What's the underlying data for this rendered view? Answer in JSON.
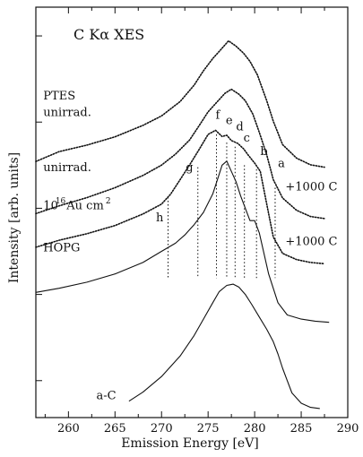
{
  "chart_data": {
    "type": "line",
    "title": "C Kα XES",
    "xlabel": "Emission Energy [eV]",
    "ylabel": "Intensity [arb. units]",
    "xlim": [
      256.5,
      290
    ],
    "ylim": [
      0,
      1
    ],
    "x_ticks": [
      260,
      265,
      270,
      275,
      280,
      285,
      290
    ],
    "grid": false,
    "legend": "none",
    "series": [
      {
        "name": "PTES unirrad.",
        "style": "dots",
        "x": [
          256.5,
          259,
          262,
          265,
          268,
          270,
          272,
          273.5,
          274.5,
          275.5,
          276.3,
          277.2,
          278,
          278.8,
          279.5,
          280.3,
          281.3,
          282,
          283,
          284.5,
          286,
          287.5
        ],
        "y": [
          0.624,
          0.648,
          0.664,
          0.684,
          0.712,
          0.735,
          0.77,
          0.81,
          0.845,
          0.875,
          0.895,
          0.918,
          0.905,
          0.888,
          0.868,
          0.835,
          0.772,
          0.722,
          0.665,
          0.632,
          0.616,
          0.61
        ]
      },
      {
        "name": "unirrad.",
        "style": "dots",
        "x": [
          256.5,
          259,
          262,
          265,
          268,
          270,
          271.5,
          273,
          274,
          275,
          276,
          276.8,
          277.5,
          278.3,
          279,
          279.8,
          280.5,
          281.3,
          282,
          283,
          284.5,
          286,
          287.5
        ],
        "y": [
          0.497,
          0.516,
          0.536,
          0.56,
          0.59,
          0.615,
          0.642,
          0.676,
          0.71,
          0.745,
          0.77,
          0.79,
          0.8,
          0.788,
          0.772,
          0.74,
          0.695,
          0.64,
          0.58,
          0.535,
          0.505,
          0.49,
          0.485
        ]
      },
      {
        "name": "10^16 Au cm^2 +1000 C",
        "style": "dots",
        "x": [
          256.5,
          259,
          262,
          265,
          268,
          270,
          271,
          272,
          273,
          274,
          275,
          275.8,
          276.5,
          277,
          277.5,
          278.2,
          278.8,
          279.3,
          280,
          280.6,
          281.3,
          282,
          283,
          284.5,
          286,
          287.5
        ],
        "y": [
          0.415,
          0.432,
          0.448,
          0.468,
          0.496,
          0.52,
          0.545,
          0.58,
          0.615,
          0.652,
          0.69,
          0.7,
          0.685,
          0.688,
          0.675,
          0.668,
          0.655,
          0.64,
          0.62,
          0.6,
          0.52,
          0.44,
          0.4,
          0.385,
          0.378,
          0.375
        ]
      },
      {
        "name": "HOPG +1000 C",
        "style": "line",
        "x": [
          256.5,
          259,
          262,
          265,
          268,
          270,
          271.5,
          272.5,
          273.5,
          274.5,
          275.5,
          276,
          276.5,
          277,
          277.5,
          278,
          278.5,
          279,
          279.5,
          280,
          280.5,
          281,
          281.5,
          282.5,
          283.5,
          285,
          286.5,
          288
        ],
        "y": [
          0.305,
          0.315,
          0.33,
          0.35,
          0.378,
          0.405,
          0.425,
          0.445,
          0.47,
          0.5,
          0.545,
          0.58,
          0.615,
          0.625,
          0.6,
          0.575,
          0.54,
          0.51,
          0.48,
          0.48,
          0.45,
          0.4,
          0.35,
          0.28,
          0.25,
          0.24,
          0.235,
          0.232
        ]
      },
      {
        "name": "a-C",
        "style": "line",
        "x": [
          266.5,
          268,
          270,
          272,
          273.5,
          274.5,
          275.5,
          276.2,
          277,
          277.7,
          278.3,
          279,
          279.7,
          280.5,
          281.3,
          282,
          282.5,
          283,
          283.5,
          284,
          285,
          286,
          287
        ],
        "y": [
          0.04,
          0.062,
          0.1,
          0.15,
          0.2,
          0.24,
          0.28,
          0.307,
          0.322,
          0.325,
          0.318,
          0.3,
          0.275,
          0.245,
          0.215,
          0.185,
          0.155,
          0.12,
          0.09,
          0.06,
          0.035,
          0.025,
          0.022
        ]
      }
    ],
    "curve_labels": [
      {
        "text": "PTES",
        "x": 257.3,
        "y": 0.775
      },
      {
        "text": "unirrad.",
        "x": 257.3,
        "y": 0.735
      },
      {
        "text": "unirrad.",
        "x": 257.3,
        "y": 0.6
      },
      {
        "text": "10",
        "x": 257.3,
        "y": 0.508
      },
      {
        "text": "16",
        "x": 258.6,
        "y": 0.522
      },
      {
        "text": "Au cm",
        "x": 259.8,
        "y": 0.508
      },
      {
        "text": "2",
        "x": 264.0,
        "y": 0.522
      },
      {
        "text": "+1000 C",
        "x": 283.3,
        "y": 0.553
      },
      {
        "text": "+1000 C",
        "x": 283.3,
        "y": 0.42
      },
      {
        "text": "HOPG",
        "x": 257.3,
        "y": 0.405
      },
      {
        "text": "a-C",
        "x": 263.0,
        "y": 0.045
      }
    ],
    "feature_markers": [
      {
        "label": "a",
        "x": 282.2,
        "y_top": 0.56,
        "label_x": 282.5,
        "label_y": 0.61
      },
      {
        "label": "b",
        "x": 280.2,
        "y_top": 0.605,
        "label_x": 280.6,
        "label_y": 0.64
      },
      {
        "label": "c",
        "x": 278.9,
        "y_top": 0.615,
        "label_x": 278.8,
        "label_y": 0.673
      },
      {
        "label": "d",
        "x": 277.9,
        "y_top": 0.66,
        "label_x": 278.0,
        "label_y": 0.7
      },
      {
        "label": "e",
        "x": 277.0,
        "y_top": 0.67,
        "label_x": 276.9,
        "label_y": 0.715
      },
      {
        "label": "f",
        "x": 275.9,
        "y_top": 0.69,
        "label_x": 275.8,
        "label_y": 0.728
      },
      {
        "label": "g",
        "x": 273.9,
        "y_top": 0.61,
        "label_x": 272.6,
        "label_y": 0.6
      },
      {
        "label": "h",
        "x": 270.7,
        "y_top": 0.537,
        "label_x": 269.4,
        "label_y": 0.478
      }
    ]
  }
}
